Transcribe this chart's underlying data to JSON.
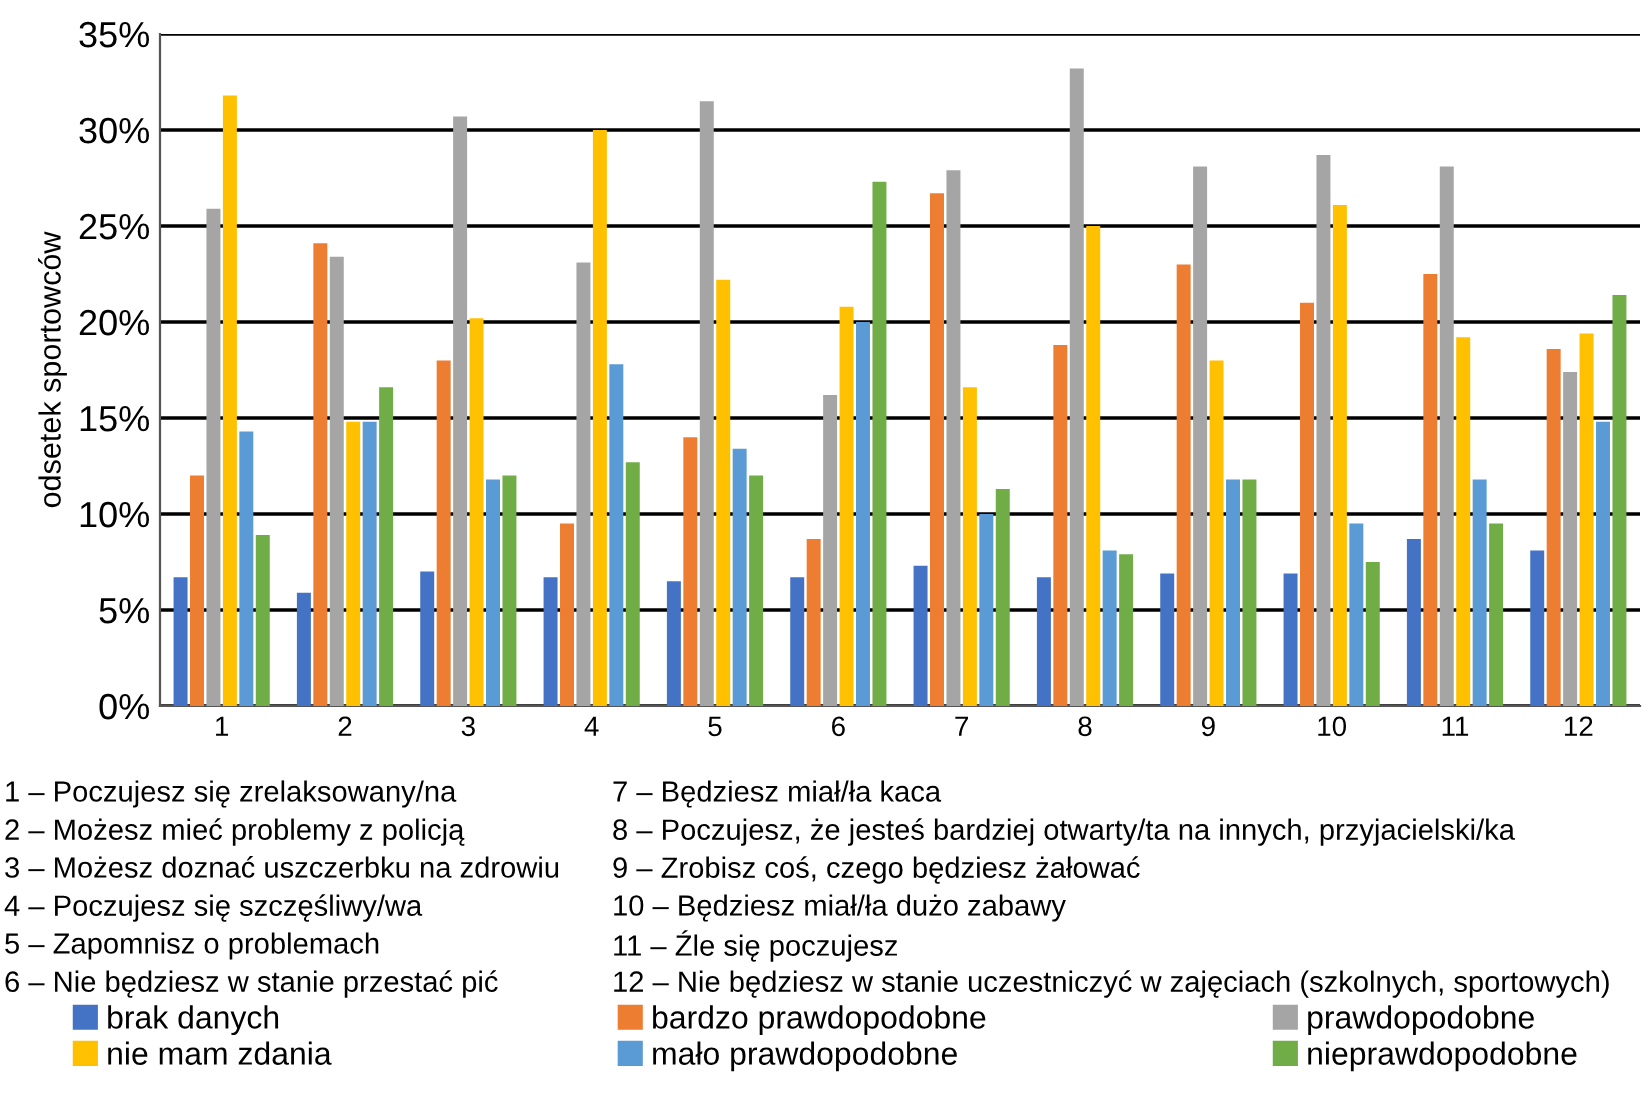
{
  "chart_data": {
    "type": "bar",
    "ylabel": "odsetek sportowców",
    "categories": [
      "1",
      "2",
      "3",
      "4",
      "5",
      "6",
      "7",
      "8",
      "9",
      "10",
      "11",
      "12"
    ],
    "series": [
      {
        "name": "brak danych",
        "color": "#4472c4",
        "values": [
          6.7,
          5.9,
          7.0,
          6.7,
          6.5,
          6.7,
          7.3,
          6.7,
          6.9,
          6.9,
          8.7,
          8.1
        ]
      },
      {
        "name": "bardzo prawdopodobne",
        "color": "#ed7d31",
        "values": [
          12.0,
          24.1,
          18.0,
          9.5,
          14.0,
          8.7,
          26.7,
          18.8,
          23.0,
          21.0,
          22.5,
          18.6
        ]
      },
      {
        "name": "prawdopodobne",
        "color": "#a5a5a5",
        "values": [
          25.9,
          23.4,
          30.7,
          23.1,
          31.5,
          16.2,
          27.9,
          33.2,
          28.1,
          28.7,
          28.1,
          17.4
        ]
      },
      {
        "name": "nie mam zdania",
        "color": "#ffc000",
        "values": [
          31.8,
          14.8,
          20.2,
          30.0,
          22.2,
          20.8,
          16.6,
          25.0,
          18.0,
          26.1,
          19.2,
          19.4
        ]
      },
      {
        "name": "mało prawdopodobne",
        "color": "#5b9bd5",
        "values": [
          14.3,
          14.8,
          11.8,
          17.8,
          13.4,
          20.0,
          10.0,
          8.1,
          11.8,
          9.5,
          11.8,
          14.8
        ]
      },
      {
        "name": "nieprawdopodobne",
        "color": "#70ad47",
        "values": [
          8.9,
          16.6,
          12.0,
          12.7,
          12.0,
          27.3,
          11.3,
          7.9,
          11.8,
          7.5,
          9.5,
          21.4
        ]
      }
    ],
    "ylim": [
      0,
      35
    ],
    "yticks": [
      {
        "value": 0,
        "label": "0%"
      },
      {
        "value": 5,
        "label": "5%"
      },
      {
        "value": 10,
        "label": "10%"
      },
      {
        "value": 15,
        "label": "15%"
      },
      {
        "value": 20,
        "label": "20%"
      },
      {
        "value": 25,
        "label": "25%"
      },
      {
        "value": 30,
        "label": "30%"
      },
      {
        "value": 35,
        "label": "35%"
      }
    ],
    "grid": "y",
    "legend": "bottom",
    "annotations": [
      "1 – Poczujesz się zrelaksowany/na",
      "2 – Możesz mieć problemy z policją",
      "3 – Możesz doznać uszczerbku na zdrowiu",
      "4 – Poczujesz się szczęśliwy/wa",
      "5 – Zapomnisz o problemach",
      "6 – Nie będziesz w stanie przestać pić",
      "7 – Będziesz miał/ła kaca",
      "8 – Poczujesz, że jesteś bardziej otwarty/ta na innych, przyjacielski/ka",
      "9 – Zrobisz coś, czego będziesz żałować",
      "10 – Będziesz miał/ła dużo zabawy",
      "11 – Źle się poczujesz",
      "12 – Nie będziesz w stanie uczestniczyć w zajęciach (szkolnych, sportowych)"
    ]
  }
}
